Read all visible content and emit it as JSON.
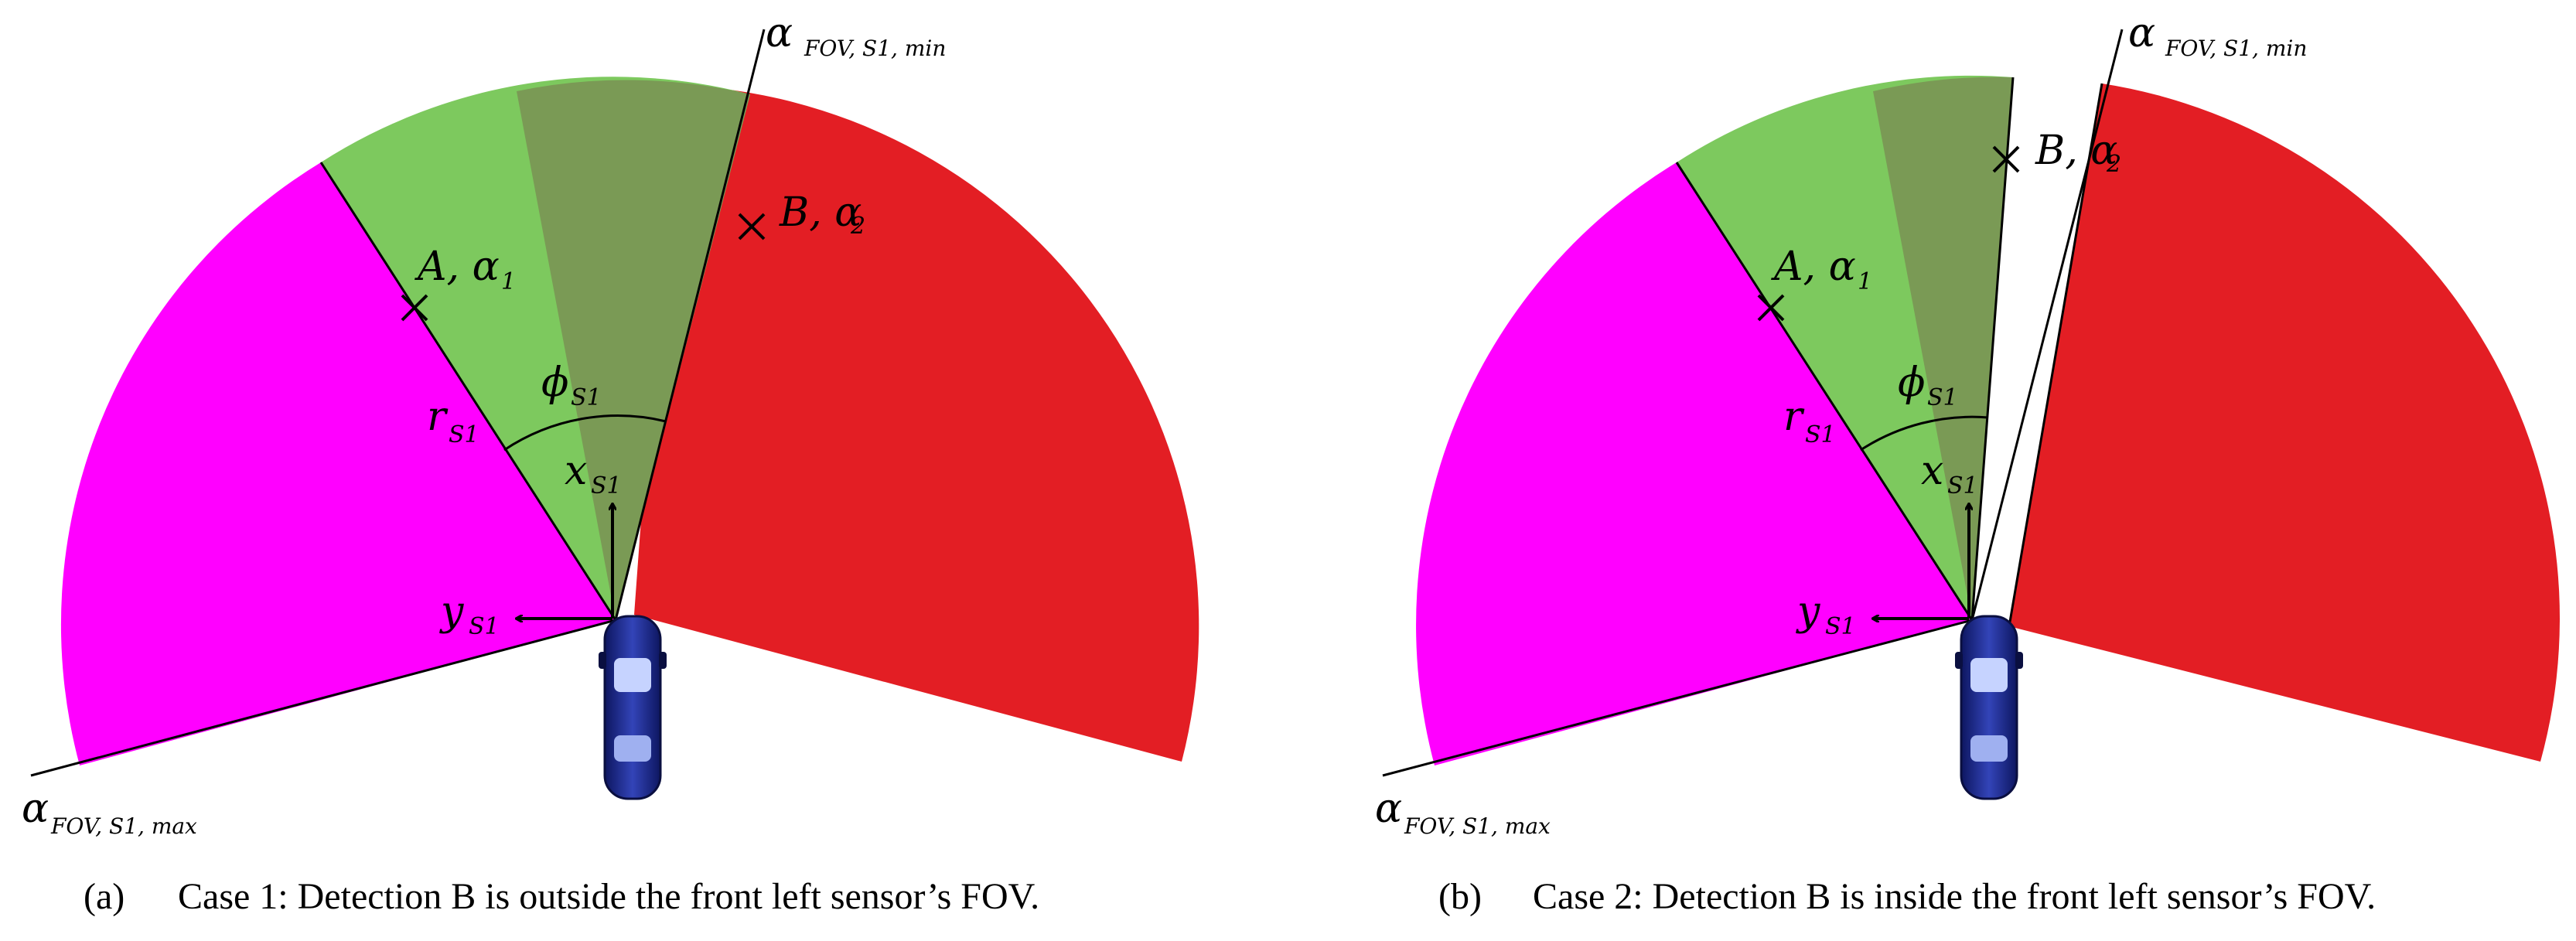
{
  "colors": {
    "left_region": "#ff00ff",
    "sensor_fov_region": "#7dc95e",
    "overlap_region": "#7a9a55",
    "right_region": "#e31e24",
    "line": "#000000",
    "car": "#1d2a8a"
  },
  "panels": [
    {
      "id": "a",
      "labels": {
        "alpha_min": "α",
        "alpha_min_sub": "FOV, S1, min",
        "alpha_max": "α",
        "alpha_max_sub": "FOV, S1, max",
        "point_a": "A, α",
        "point_a_sub": "1",
        "point_b": "B, α",
        "point_b_sub": "2",
        "phi": "ϕ",
        "phi_sub": "S1",
        "r": "r",
        "r_sub": "S1",
        "x": "x",
        "x_sub": "S1",
        "y": "y",
        "y_sub": "S1"
      },
      "caption_label": "(a)",
      "caption_text": "Case 1: Detection B is outside the front left sensor’s FOV."
    },
    {
      "id": "b",
      "labels": {
        "alpha_min": "α",
        "alpha_min_sub": "FOV, S1, min",
        "alpha_max": "α",
        "alpha_max_sub": "FOV, S1, max",
        "point_a": "A, α",
        "point_a_sub": "1",
        "point_b": "B, α",
        "point_b_sub": "2",
        "phi": "ϕ",
        "phi_sub": "S1",
        "r": "r",
        "r_sub": "S1",
        "x": "x",
        "x_sub": "S1",
        "y": "y",
        "y_sub": "S1"
      },
      "caption_label": "(b)",
      "caption_text": "Case 2: Detection B is inside the front left sensor’s FOV."
    }
  ]
}
